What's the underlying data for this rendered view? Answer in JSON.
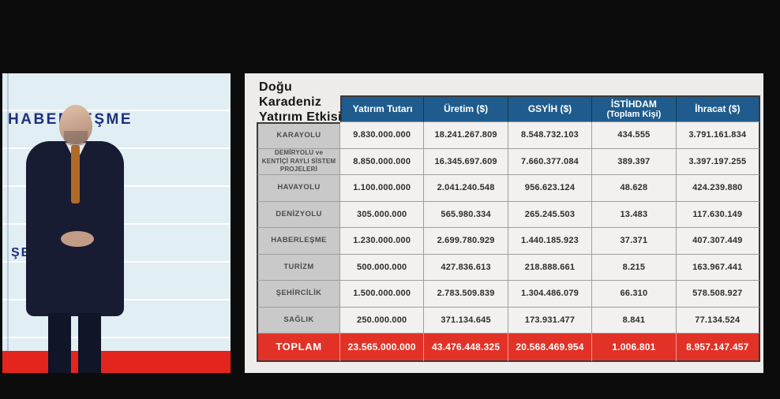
{
  "video": {
    "slide_labels": [
      "HABERLEŞME",
      "ŞEHİRCİLİK"
    ]
  },
  "panel": {
    "title_lines": [
      "Doğu",
      "Karadeniz",
      "Yatırım Etkisi"
    ],
    "columns": [
      {
        "label": "Yatırım Tutarı",
        "sub": ""
      },
      {
        "label": "Üretim ($)",
        "sub": ""
      },
      {
        "label": "GSYİH ($)",
        "sub": ""
      },
      {
        "label": "İSTİHDAM",
        "sub": "(Toplam Kişi)"
      },
      {
        "label": "İhracat ($)",
        "sub": ""
      }
    ]
  },
  "chart_data": {
    "type": "table",
    "title": "Doğu Karadeniz Yatırım Etkisi",
    "columns": [
      "",
      "Yatırım Tutarı",
      "Üretim ($)",
      "GSYİH ($)",
      "İSTİHDAM (Toplam Kişi)",
      "İhracat ($)"
    ],
    "rows": [
      [
        "KARAYOLU",
        "9.830.000.000",
        "18.241.267.809",
        "8.548.732.103",
        "434.555",
        "3.791.161.834"
      ],
      [
        "DEMİRYOLU ve KENTİÇİ RAYLI SİSTEM PROJELERİ",
        "8.850.000.000",
        "16.345.697.609",
        "7.660.377.084",
        "389.397",
        "3.397.197.255"
      ],
      [
        "HAVAYOLU",
        "1.100.000.000",
        "2.041.240.548",
        "956.623.124",
        "48.628",
        "424.239.880"
      ],
      [
        "DENİZYOLU",
        "305.000.000",
        "565.980.334",
        "265.245.503",
        "13.483",
        "117.630.149"
      ],
      [
        "HABERLEŞME",
        "1.230.000.000",
        "2.699.780.929",
        "1.440.185.923",
        "37.371",
        "407.307.449"
      ],
      [
        "TURİZM",
        "500.000.000",
        "427.836.613",
        "218.888.661",
        "8.215",
        "163.967.441"
      ],
      [
        "ŞEHİRCİLİK",
        "1.500.000.000",
        "2.783.509.839",
        "1.304.486.079",
        "66.310",
        "578.508.927"
      ],
      [
        "SAĞLIK",
        "250.000.000",
        "371.134.645",
        "173.931.477",
        "8.841",
        "77.134.524"
      ]
    ],
    "total_row": [
      "TOPLAM",
      "23.565.000.000",
      "43.476.448.325",
      "20.568.469.954",
      "1.006.801",
      "8.957.147.457"
    ]
  },
  "colors": {
    "header_blue": "#1f5c8d",
    "total_red": "#e23227",
    "label_gray": "#c9c9c9",
    "panel_bg": "#edecea",
    "slide_bg": "#e1eef4",
    "slide_red": "#e4251e",
    "slide_navy": "#202e7d"
  }
}
